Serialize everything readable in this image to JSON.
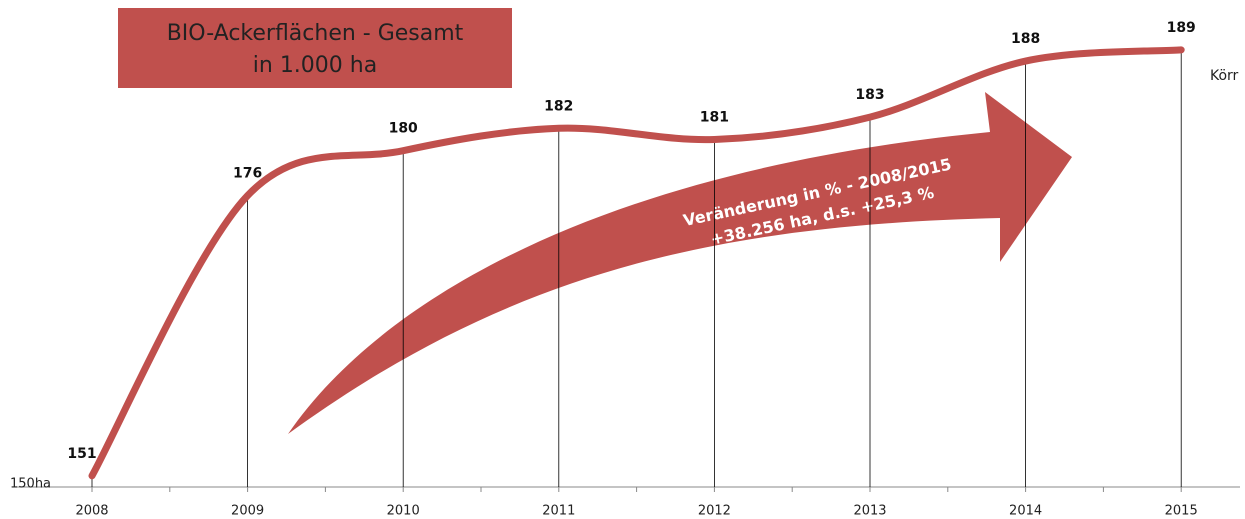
{
  "chart_data": {
    "type": "line",
    "title": "BIO-Ackerflächen - Gesamt",
    "subtitle": "in 1.000 ha",
    "categories": [
      "2008",
      "2009",
      "2010",
      "2011",
      "2012",
      "2013",
      "2014",
      "2015"
    ],
    "series": [
      {
        "name": "Körr",
        "color": "#c0504d",
        "values": [
          151,
          176,
          180,
          182,
          181,
          183,
          188,
          189
        ]
      }
    ],
    "ylim": [
      150,
      193
    ],
    "yticks": [
      {
        "value": 150,
        "label": "150ha"
      }
    ],
    "annotations": [
      "Veränderung in % - 2008/2015",
      "+38.256 ha, d.s. +25,3 %"
    ],
    "smooth": true,
    "drop_lines": true
  }
}
